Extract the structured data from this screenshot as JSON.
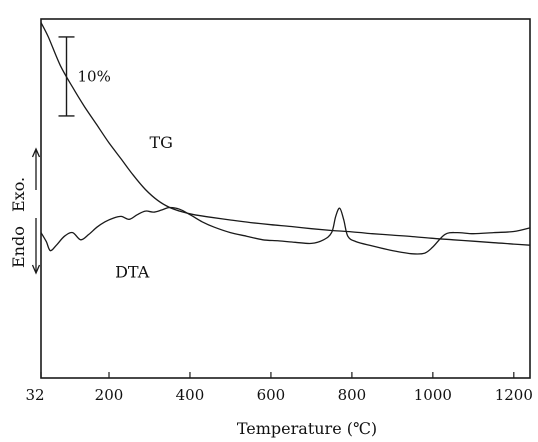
{
  "chart_data": {
    "type": "line",
    "xlabel": "Temperature (℃)",
    "xlim": [
      32,
      1240
    ],
    "x_ticks": [
      {
        "value": 32,
        "label": "32"
      },
      {
        "value": 200,
        "label": "200"
      },
      {
        "value": 400,
        "label": "400"
      },
      {
        "value": 600,
        "label": "600"
      },
      {
        "value": 800,
        "label": "800"
      },
      {
        "value": 1000,
        "label": "1000"
      },
      {
        "value": 1200,
        "label": "1200"
      }
    ],
    "ylim": [
      0,
      100
    ],
    "grid": false,
    "y_axis_labels": {
      "endo": "Endo",
      "exo": "Exo."
    },
    "scale_bar": {
      "label": "10%",
      "length": 20,
      "y_top": 95,
      "y_bottom": 73
    },
    "annotations": [
      {
        "text": "TG",
        "x": 300,
        "y": 64
      },
      {
        "text": "DTA",
        "x": 215,
        "y": 28
      }
    ],
    "series": [
      {
        "label_ref": "TG",
        "color": "#1a1a1a",
        "x": [
          32,
          50,
          80,
          110,
          140,
          170,
          200,
          230,
          260,
          290,
          320,
          350,
          380,
          410,
          450,
          500,
          550,
          600,
          650,
          700,
          750,
          800,
          850,
          900,
          950,
          1000,
          1050,
          1100,
          1150,
          1200,
          1240
        ],
        "y": [
          99,
          95,
          87,
          81,
          75.5,
          70.5,
          65.5,
          61,
          56.5,
          52.5,
          49.5,
          47.5,
          46.3,
          45.5,
          44.8,
          44,
          43.3,
          42.7,
          42.2,
          41.6,
          41.1,
          40.7,
          40.2,
          39.8,
          39.4,
          38.9,
          38.5,
          38.1,
          37.7,
          37.3,
          37
        ]
      },
      {
        "label_ref": "DTA",
        "color": "#1a1a1a",
        "x": [
          32,
          45,
          55,
          70,
          90,
          110,
          130,
          150,
          170,
          190,
          210,
          230,
          250,
          270,
          290,
          310,
          330,
          350,
          375,
          400,
          430,
          460,
          500,
          540,
          580,
          620,
          660,
          700,
          730,
          750,
          760,
          770,
          780,
          790,
          810,
          850,
          900,
          950,
          980,
          1000,
          1030,
          1060,
          1100,
          1150,
          1200,
          1240
        ],
        "y": [
          40.5,
          38,
          35.5,
          37,
          39.5,
          40.5,
          38.5,
          40,
          42,
          43.5,
          44.5,
          45,
          44.2,
          45.5,
          46.5,
          46.2,
          46.8,
          47.5,
          47,
          45.5,
          43.5,
          42,
          40.5,
          39.5,
          38.5,
          38.2,
          37.8,
          37.5,
          38.5,
          40.5,
          45,
          47.3,
          44,
          39.5,
          38,
          36.8,
          35.5,
          34.6,
          34.8,
          36.5,
          40,
          40.5,
          40.2,
          40.5,
          40.8,
          41.8
        ]
      }
    ]
  }
}
